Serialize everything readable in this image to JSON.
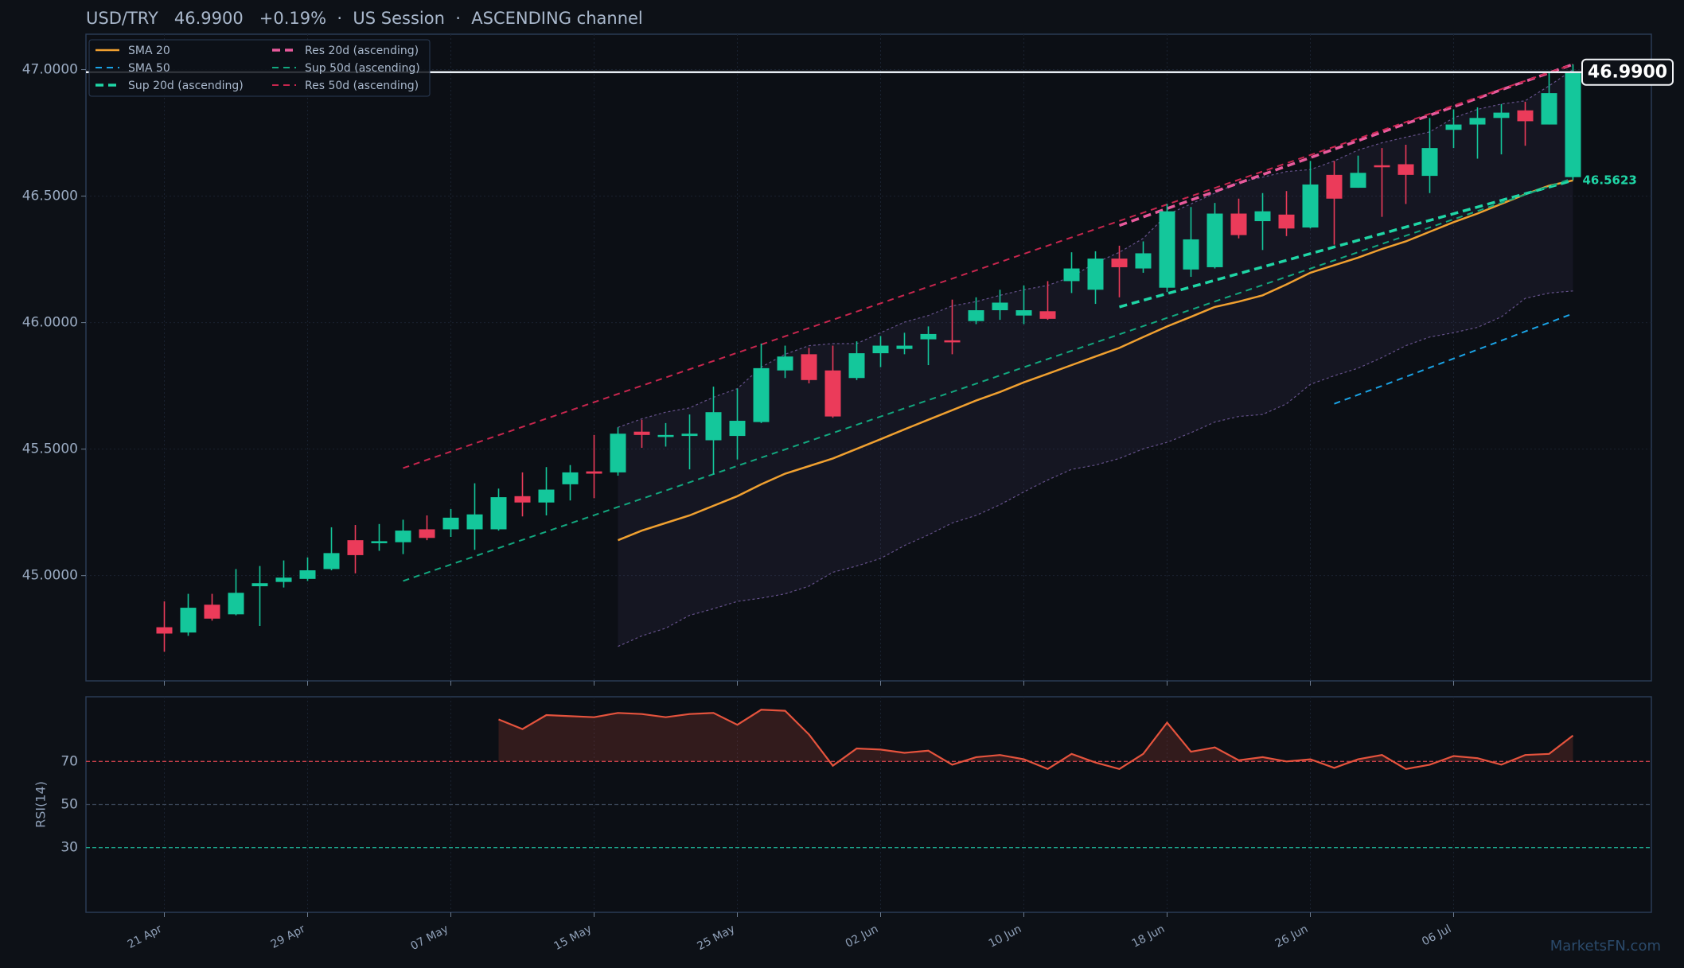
{
  "chart_data": [
    {
      "type": "candlestick",
      "title": "USD/TRY   46.9900   +0.19%  ·  US Session  ·  ASCENDING channel",
      "categories": [
        "21 Apr",
        null,
        null,
        null,
        null,
        null,
        "29 Apr",
        null,
        null,
        null,
        null,
        null,
        "07 May",
        null,
        null,
        null,
        null,
        null,
        "15 May",
        null,
        null,
        null,
        null,
        null,
        "25 May",
        null,
        null,
        null,
        null,
        null,
        "02 Jun",
        null,
        null,
        null,
        null,
        null,
        "10 Jun",
        null,
        null,
        null,
        null,
        null,
        "18 Jun",
        null,
        null,
        null,
        null,
        null,
        "26 Jun",
        null,
        null,
        null,
        null,
        null,
        "06 Jul",
        null,
        null,
        null,
        null,
        null
      ],
      "open": [
        44.796,
        44.775,
        44.885,
        44.847,
        44.958,
        44.975,
        44.987,
        45.026,
        45.14,
        45.128,
        45.132,
        45.183,
        45.183,
        45.183,
        45.183,
        45.314,
        45.289,
        45.361,
        45.412,
        45.408,
        45.569,
        45.548,
        45.552,
        45.535,
        45.552,
        45.607,
        45.811,
        45.875,
        45.811,
        45.781,
        45.879,
        45.896,
        45.934,
        45.93,
        46.006,
        46.049,
        46.028,
        46.045,
        46.164,
        46.13,
        46.253,
        46.214,
        46.138,
        46.21,
        46.219,
        46.431,
        46.401,
        46.427,
        46.376,
        46.584,
        46.533,
        46.622,
        46.626,
        46.58,
        46.762,
        46.783,
        46.809,
        46.839,
        46.783,
        46.575
      ],
      "high": [
        44.898,
        44.928,
        44.928,
        45.026,
        45.038,
        45.06,
        45.072,
        45.191,
        45.2,
        45.204,
        45.221,
        45.238,
        45.263,
        45.365,
        45.344,
        45.408,
        45.429,
        45.437,
        45.556,
        45.586,
        45.616,
        45.603,
        45.637,
        45.747,
        45.739,
        45.917,
        45.909,
        45.9,
        45.909,
        45.926,
        45.947,
        45.96,
        45.985,
        46.091,
        46.1,
        46.13,
        46.147,
        46.164,
        46.278,
        46.282,
        46.304,
        46.321,
        46.469,
        46.457,
        46.473,
        46.49,
        46.512,
        46.52,
        46.639,
        46.639,
        46.66,
        46.69,
        46.703,
        46.809,
        46.843,
        46.851,
        46.864,
        46.873,
        46.992,
        47.021
      ],
      "low": [
        44.699,
        44.762,
        44.822,
        44.843,
        44.801,
        44.953,
        44.979,
        45.021,
        45.009,
        45.098,
        45.085,
        45.14,
        45.153,
        45.102,
        45.178,
        45.234,
        45.238,
        45.297,
        45.306,
        45.395,
        45.505,
        45.51,
        45.42,
        45.399,
        45.459,
        45.603,
        45.781,
        45.76,
        45.624,
        45.773,
        45.824,
        45.875,
        45.832,
        45.875,
        45.994,
        46.011,
        45.994,
        46.011,
        46.117,
        46.074,
        46.1,
        46.197,
        46.121,
        46.181,
        46.214,
        46.333,
        46.287,
        46.342,
        46.372,
        46.308,
        46.533,
        46.418,
        46.469,
        46.512,
        46.69,
        46.648,
        46.665,
        46.699,
        46.783,
        46.563
      ],
      "close": [
        44.771,
        44.873,
        44.83,
        44.932,
        44.97,
        44.992,
        45.021,
        45.089,
        45.081,
        45.136,
        45.178,
        45.149,
        45.229,
        45.242,
        45.31,
        45.289,
        45.34,
        45.408,
        45.403,
        45.561,
        45.556,
        45.556,
        45.561,
        45.646,
        45.612,
        45.82,
        45.866,
        45.773,
        45.629,
        45.879,
        45.909,
        45.909,
        45.955,
        45.922,
        46.049,
        46.079,
        46.049,
        46.015,
        46.214,
        46.253,
        46.219,
        46.274,
        46.44,
        46.329,
        46.431,
        46.346,
        46.44,
        46.372,
        46.546,
        46.49,
        46.592,
        46.614,
        46.584,
        46.69,
        46.783,
        46.809,
        46.83,
        46.796,
        46.907,
        46.99
      ],
      "up_color": "#14c79b",
      "down_color": "#eb3b5a",
      "ylim": [
        44.584,
        47.14
      ],
      "yticks": [
        {
          "value": 45,
          "label": "45.0000"
        },
        {
          "value": 45.5,
          "label": "45.5000"
        },
        {
          "value": 46,
          "label": "46.0000"
        },
        {
          "value": 46.5,
          "label": "46.5000"
        },
        {
          "value": 47,
          "label": "47.0000"
        }
      ],
      "grid": true,
      "legend": "upper left",
      "last_price": {
        "value": 46.99,
        "label": "46.9900"
      },
      "band": {
        "color": "#7a62a8",
        "upper": [
          null,
          null,
          null,
          null,
          null,
          null,
          null,
          null,
          null,
          null,
          null,
          null,
          null,
          null,
          null,
          null,
          null,
          null,
          null,
          45.586,
          45.62,
          45.646,
          45.663,
          45.705,
          45.739,
          45.824,
          45.875,
          45.909,
          45.917,
          45.917,
          45.96,
          46.002,
          46.028,
          46.066,
          46.083,
          46.108,
          46.13,
          46.147,
          46.181,
          46.236,
          46.278,
          46.333,
          46.427,
          46.469,
          46.512,
          46.554,
          46.575,
          46.597,
          46.605,
          46.639,
          46.682,
          46.711,
          46.733,
          46.754,
          46.809,
          46.843,
          46.864,
          46.877,
          46.936,
          47.0
        ],
        "lower": [
          null,
          null,
          null,
          null,
          null,
          null,
          null,
          null,
          null,
          null,
          null,
          null,
          null,
          null,
          null,
          null,
          null,
          null,
          null,
          44.72,
          44.762,
          44.792,
          44.843,
          44.869,
          44.898,
          44.911,
          44.928,
          44.958,
          45.013,
          45.038,
          45.068,
          45.119,
          45.161,
          45.208,
          45.238,
          45.28,
          45.331,
          45.378,
          45.42,
          45.437,
          45.463,
          45.501,
          45.527,
          45.565,
          45.607,
          45.629,
          45.637,
          45.679,
          45.756,
          45.79,
          45.82,
          45.862,
          45.909,
          45.943,
          45.96,
          45.981,
          46.023,
          46.096,
          46.117,
          46.125
        ]
      },
      "series": [
        {
          "name": "SMA 20",
          "color": "#f0a030",
          "style": "solid",
          "values": [
            null,
            null,
            null,
            null,
            null,
            null,
            null,
            null,
            null,
            null,
            null,
            null,
            null,
            null,
            null,
            null,
            null,
            null,
            null,
            45.14,
            45.178,
            45.208,
            45.238,
            45.276,
            45.314,
            45.361,
            45.403,
            45.433,
            45.463,
            45.501,
            45.539,
            45.578,
            45.616,
            45.654,
            45.692,
            45.726,
            45.764,
            45.798,
            45.832,
            45.866,
            45.9,
            45.943,
            45.985,
            46.023,
            46.062,
            46.083,
            46.108,
            46.151,
            46.197,
            46.227,
            46.257,
            46.291,
            46.321,
            46.359,
            46.397,
            46.431,
            46.469,
            46.507,
            46.541,
            46.562
          ]
        },
        {
          "name": "SMA 50",
          "color": "#1aa3e6",
          "style": "dashed",
          "values": [
            null,
            null,
            null,
            null,
            null,
            null,
            null,
            null,
            null,
            null,
            null,
            null,
            null,
            null,
            null,
            null,
            null,
            null,
            null,
            null,
            null,
            null,
            null,
            null,
            null,
            null,
            null,
            null,
            null,
            null,
            null,
            null,
            null,
            null,
            null,
            null,
            null,
            null,
            null,
            null,
            null,
            null,
            null,
            null,
            null,
            null,
            null,
            null,
            null,
            45.679,
            45.715,
            45.75,
            45.786,
            45.822,
            45.858,
            45.893,
            45.929,
            45.965,
            46.0,
            46.036
          ]
        },
        {
          "name": "Sup 20d (ascending)",
          "color": "#1fd6a6",
          "style": "dashed-bold",
          "x": [
            40,
            59
          ],
          "values": [
            46.062,
            46.5623
          ],
          "label_last": true
        },
        {
          "name": "Res 20d (ascending)",
          "color": "#e85a9c",
          "style": "dashed-bold",
          "x": [
            40,
            59
          ],
          "values": [
            46.384,
            47.021
          ]
        },
        {
          "name": "Sup 50d (ascending)",
          "color": "#12a77f",
          "style": "dashed",
          "x": [
            10,
            59
          ],
          "values": [
            44.979,
            46.571
          ]
        },
        {
          "name": "Res 50d (ascending)",
          "color": "#c7264e",
          "style": "dashed",
          "x": [
            10,
            59
          ],
          "values": [
            45.425,
            47.021
          ]
        }
      ]
    },
    {
      "type": "line",
      "ylabel": "RSI(14)",
      "color": "#e5533d",
      "values": [
        null,
        null,
        null,
        null,
        null,
        null,
        null,
        null,
        null,
        null,
        null,
        null,
        null,
        null,
        89.5,
        85,
        91.5,
        91,
        90.5,
        92.5,
        92,
        90.5,
        92,
        92.5,
        87,
        94,
        93.5,
        82.5,
        68,
        76,
        75.5,
        74,
        75,
        68.5,
        72,
        73,
        71,
        66.5,
        73.5,
        69.5,
        66.5,
        73.5,
        88,
        74.5,
        76.5,
        70.5,
        72,
        70,
        71,
        67,
        71,
        73,
        66.5,
        68.5,
        72.5,
        71.5,
        68.5,
        73,
        73.5,
        82
      ],
      "ylim": [
        0,
        100
      ],
      "yticks": [
        30,
        50,
        70
      ],
      "tick_colors": [
        "#1b9f86",
        "#3a4658",
        "#c8404a"
      ],
      "fill_above": 70
    }
  ],
  "watermark": "MarketsFN.com"
}
